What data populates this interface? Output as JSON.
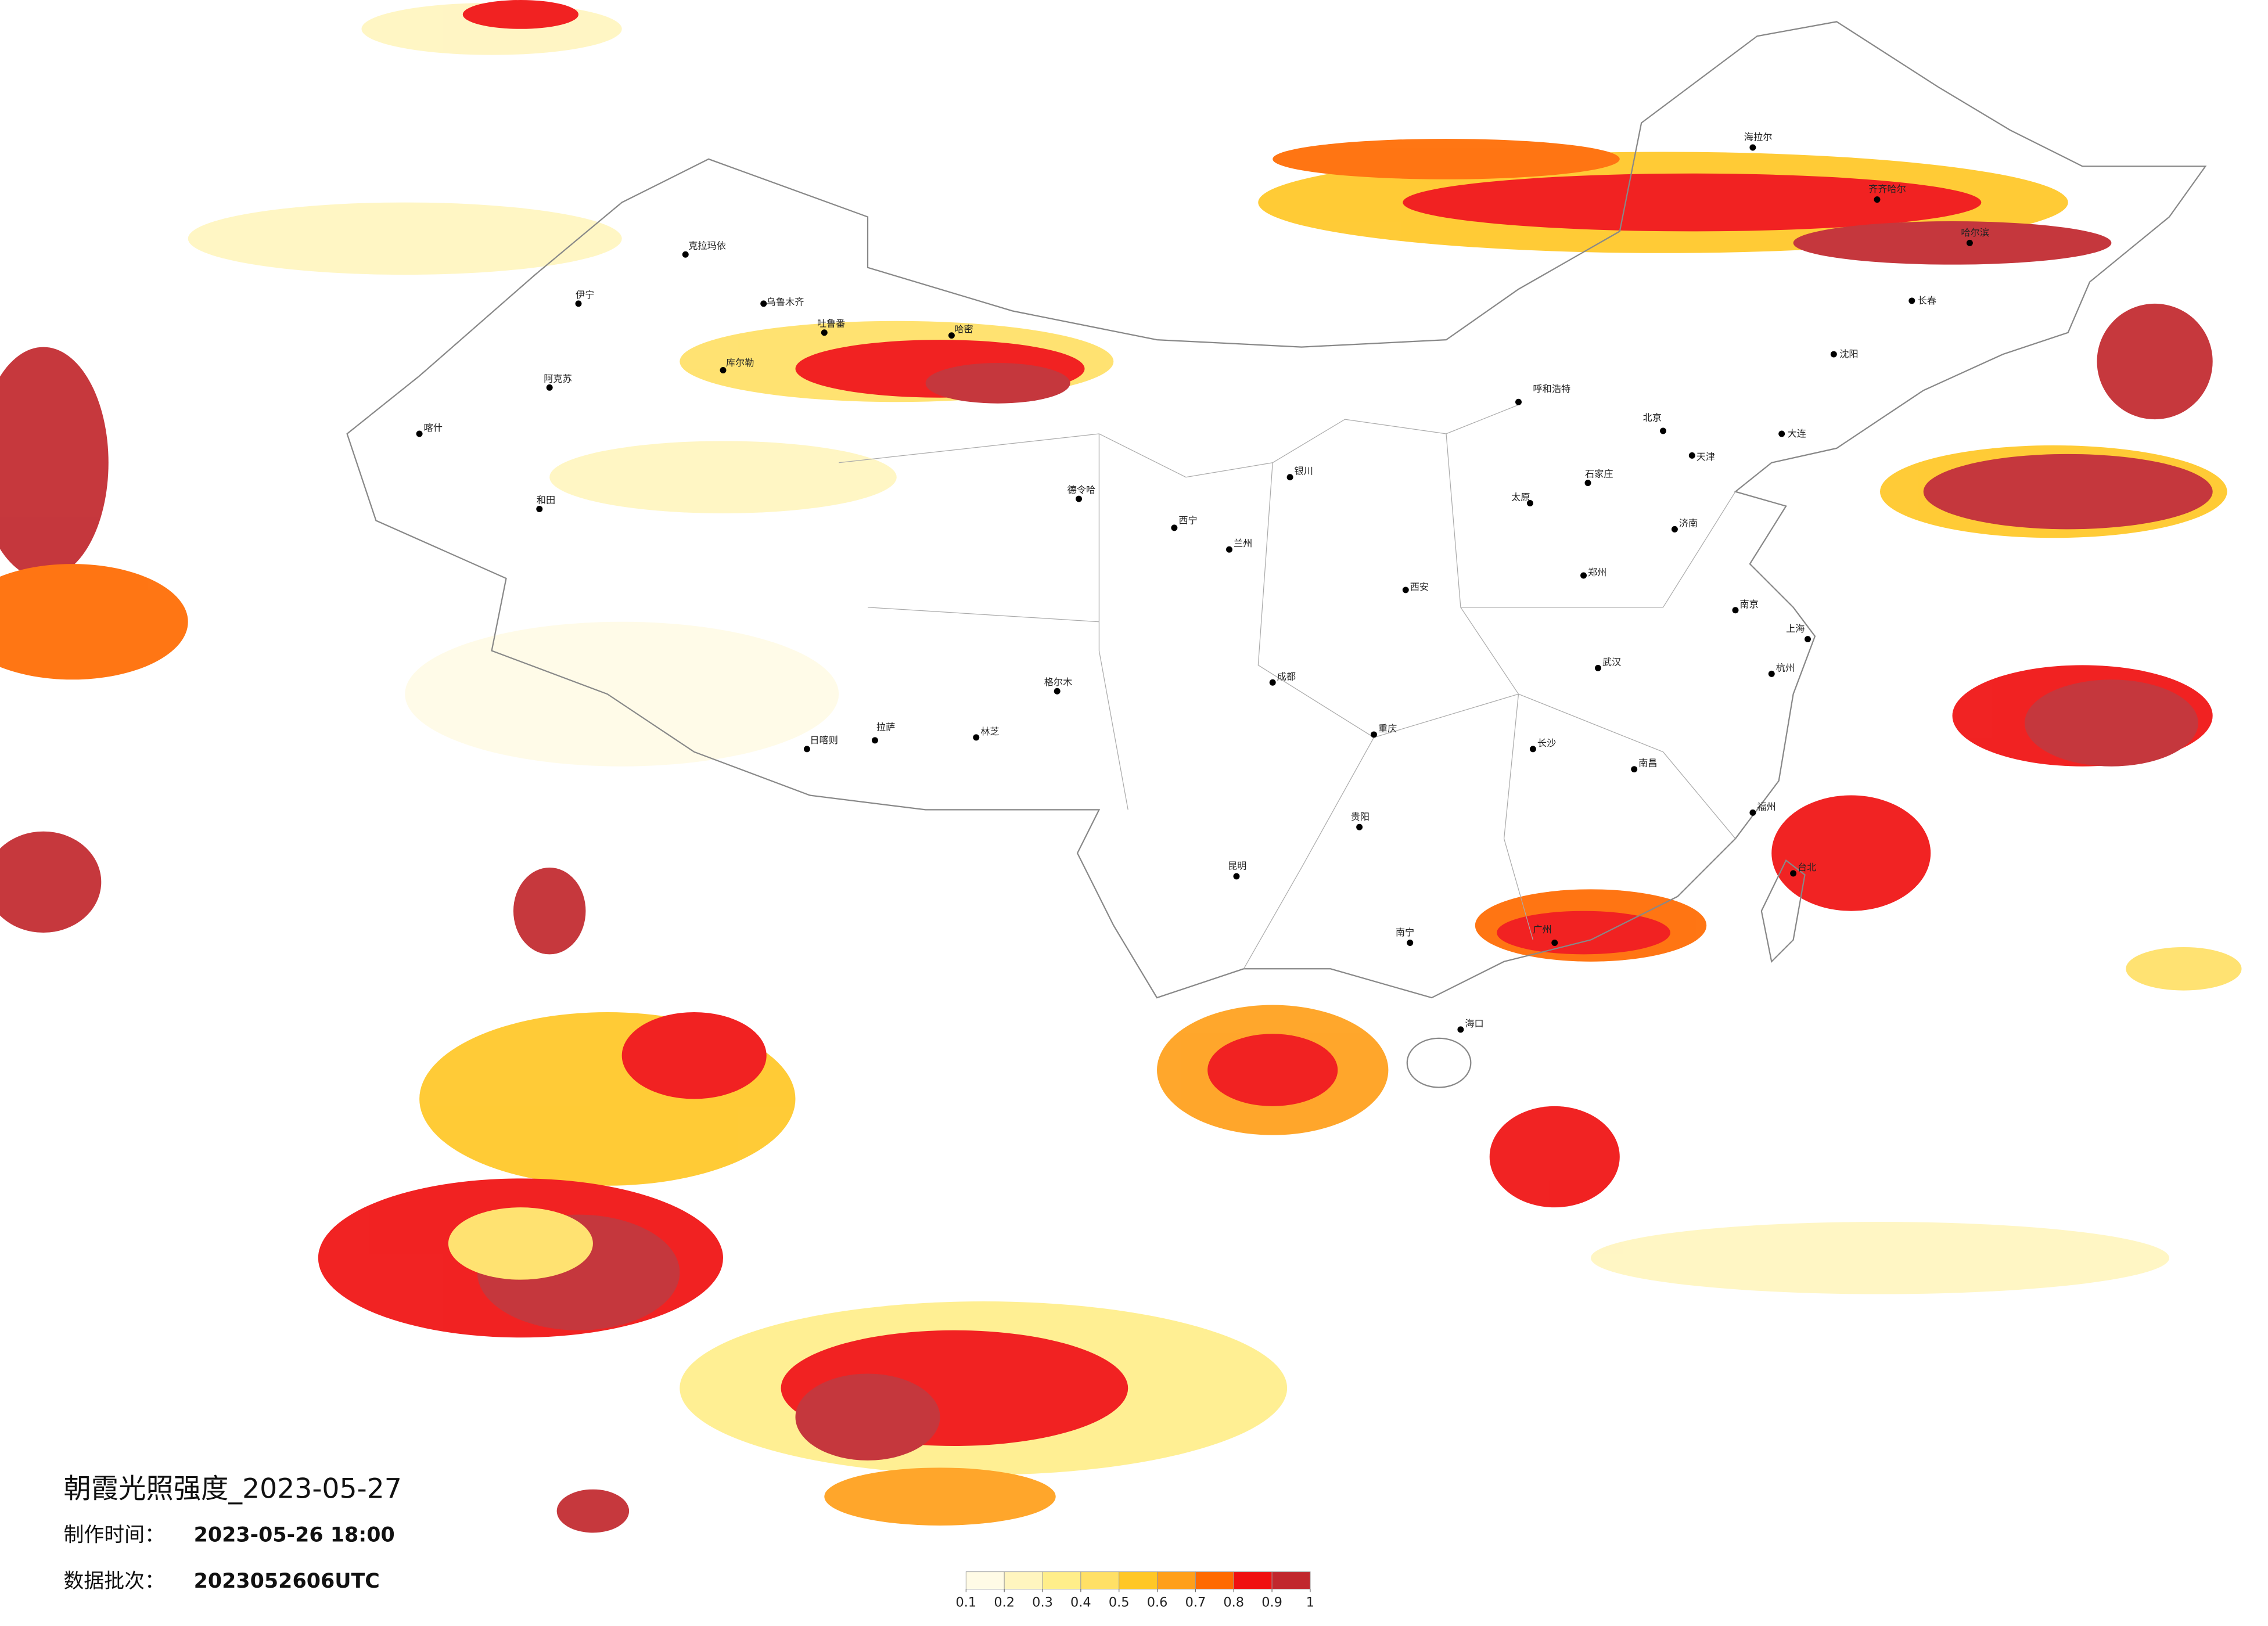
{
  "title": "朝霞光照强度_2023-05-27",
  "info": [
    {
      "label": "制作时间：",
      "value": "2023-05-26 18:00"
    },
    {
      "label": "数据批次：",
      "value": "2023052606UTC"
    }
  ],
  "colorbar": {
    "ticks": [
      0.1,
      0.2,
      0.3,
      0.4,
      0.5,
      0.6,
      0.7,
      0.8,
      0.9,
      1
    ],
    "colors": [
      "#fffbe6",
      "#fff5bf",
      "#ffee8a",
      "#ffe066",
      "#ffc726",
      "#ff9f1a",
      "#ff6a00",
      "#f01010",
      "#c1272d"
    ]
  },
  "cities": [
    "海拉尔",
    "齐齐哈尔",
    "哈尔滨",
    "长春",
    "沈阳",
    "大连",
    "克拉玛依",
    "乌鲁木齐",
    "伊宁",
    "阿克苏",
    "喀什",
    "和田",
    "吐鲁番",
    "哈密",
    "库尔勒",
    "德令哈",
    "格尔木",
    "日喀则",
    "拉萨",
    "林芝",
    "呼和浩特",
    "北京",
    "天津",
    "石家庄",
    "太原",
    "济南",
    "郑州",
    "西安",
    "银川",
    "兰州",
    "西宁",
    "成都",
    "重庆",
    "武汉",
    "长沙",
    "南昌",
    "南京",
    "上海",
    "杭州",
    "福州",
    "广州",
    "南宁",
    "昆明",
    "贵阳",
    "海口",
    "台北"
  ]
}
